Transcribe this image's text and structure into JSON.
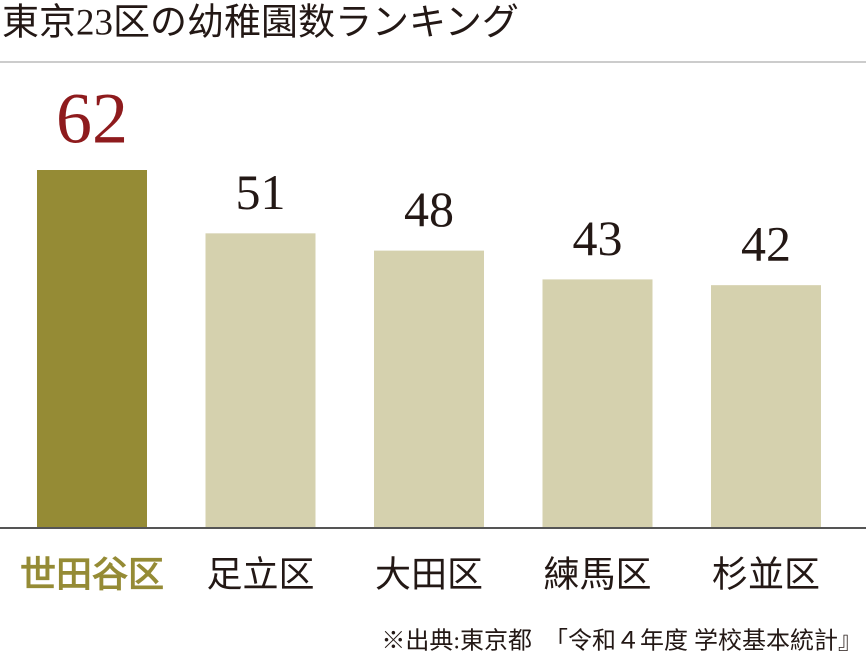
{
  "chart_data": {
    "type": "bar",
    "title": "東京23区の幼稚園数ランキング",
    "categories": [
      "世田谷区",
      "足立区",
      "大田区",
      "練馬区",
      "杉並区"
    ],
    "values": [
      62,
      51,
      48,
      43,
      42
    ],
    "colors": [
      "#958b35",
      "#d5d1ae",
      "#d5d1ae",
      "#d5d1ae",
      "#d5d1ae"
    ],
    "value_label_colors": [
      "#8e1b1d",
      "#231815",
      "#231815",
      "#231815",
      "#231815"
    ],
    "category_label_colors": [
      "#958b35",
      "#231815",
      "#231815",
      "#231815",
      "#231815"
    ],
    "source": "※出典:東京都　「令和４年度 学校基本統計』"
  }
}
